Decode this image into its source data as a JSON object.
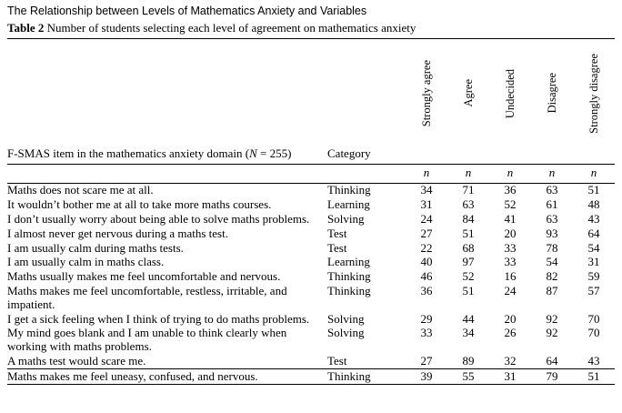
{
  "page": {
    "running_head": "The Relationship between Levels of Mathematics Anxiety and Variables",
    "table_label": "Table 2",
    "table_caption": "Number of students selecting each level of agreement on mathematics anxiety"
  },
  "table": {
    "item_header_prefix": "F-SMAS item in the mathematics anxiety domain (",
    "item_header_n": "N",
    "item_header_suffix": " = 255)",
    "category_header": "Category",
    "agreement_levels": [
      "Strongly agree",
      "Agree",
      "Undecided",
      "Disagree",
      "Strongly disagree"
    ],
    "count_symbol": "n",
    "rows": [
      {
        "item": "Maths does not scare me at all.",
        "category": "Thinking",
        "values": [
          34,
          71,
          36,
          63,
          51
        ]
      },
      {
        "item": "It wouldn’t bother me at all to take more maths courses.",
        "category": "Learning",
        "values": [
          31,
          63,
          52,
          61,
          48
        ]
      },
      {
        "item": "I don’t usually worry about being able to solve maths problems.",
        "category": "Solving",
        "values": [
          24,
          84,
          41,
          63,
          43
        ]
      },
      {
        "item": "I almost never get nervous during a maths test.",
        "category": "Test",
        "values": [
          27,
          51,
          20,
          93,
          64
        ]
      },
      {
        "item": "I am usually calm during maths tests.",
        "category": "Test",
        "values": [
          22,
          68,
          33,
          78,
          54
        ]
      },
      {
        "item": "I am usually calm in maths class.",
        "category": "Learning",
        "values": [
          40,
          97,
          33,
          54,
          31
        ]
      },
      {
        "item": "Maths usually makes me feel uncomfortable and nervous.",
        "category": "Thinking",
        "values": [
          46,
          52,
          16,
          82,
          59
        ]
      },
      {
        "item": "Maths makes me feel uncomfortable, restless, irritable, and impatient.",
        "category": "Thinking",
        "values": [
          36,
          51,
          24,
          87,
          57
        ]
      },
      {
        "item": "I get a sick feeling when I think of trying to do maths problems.",
        "category": "Solving",
        "values": [
          29,
          44,
          20,
          92,
          70
        ]
      },
      {
        "item": "My mind goes blank and I am unable to think clearly when working with maths problems.",
        "category": "Solving",
        "values": [
          33,
          34,
          26,
          92,
          70
        ]
      },
      {
        "item": "A maths test would scare me.",
        "category": "Test",
        "values": [
          27,
          89,
          32,
          64,
          43
        ]
      },
      {
        "item": "Maths makes me feel uneasy, confused, and nervous.",
        "category": "Thinking",
        "values": [
          39,
          55,
          31,
          79,
          51
        ]
      }
    ]
  },
  "chart_data": {
    "type": "table",
    "title": "Number of students selecting each level of agreement on mathematics anxiety",
    "columns": [
      "F-SMAS item in the mathematics anxiety domain (N = 255)",
      "Category",
      "Strongly agree",
      "Agree",
      "Undecided",
      "Disagree",
      "Strongly disagree"
    ],
    "rows": [
      [
        "Maths does not scare me at all.",
        "Thinking",
        34,
        71,
        36,
        63,
        51
      ],
      [
        "It wouldn’t bother me at all to take more maths courses.",
        "Learning",
        31,
        63,
        52,
        61,
        48
      ],
      [
        "I don’t usually worry about being able to solve maths problems.",
        "Solving",
        24,
        84,
        41,
        63,
        43
      ],
      [
        "I almost never get nervous during a maths test.",
        "Test",
        27,
        51,
        20,
        93,
        64
      ],
      [
        "I am usually calm during maths tests.",
        "Test",
        22,
        68,
        33,
        78,
        54
      ],
      [
        "I am usually calm in maths class.",
        "Learning",
        40,
        97,
        33,
        54,
        31
      ],
      [
        "Maths usually makes me feel uncomfortable and nervous.",
        "Thinking",
        46,
        52,
        16,
        82,
        59
      ],
      [
        "Maths makes me feel uncomfortable, restless, irritable, and impatient.",
        "Thinking",
        36,
        51,
        24,
        87,
        57
      ],
      [
        "I get a sick feeling when I think of trying to do maths problems.",
        "Solving",
        29,
        44,
        20,
        92,
        70
      ],
      [
        "My mind goes blank and I am unable to think clearly when working with maths problems.",
        "Solving",
        33,
        34,
        26,
        92,
        70
      ],
      [
        "A maths test would scare me.",
        "Test",
        27,
        89,
        32,
        64,
        43
      ],
      [
        "Maths makes me feel uneasy, confused, and nervous.",
        "Thinking",
        39,
        55,
        31,
        79,
        51
      ]
    ]
  }
}
